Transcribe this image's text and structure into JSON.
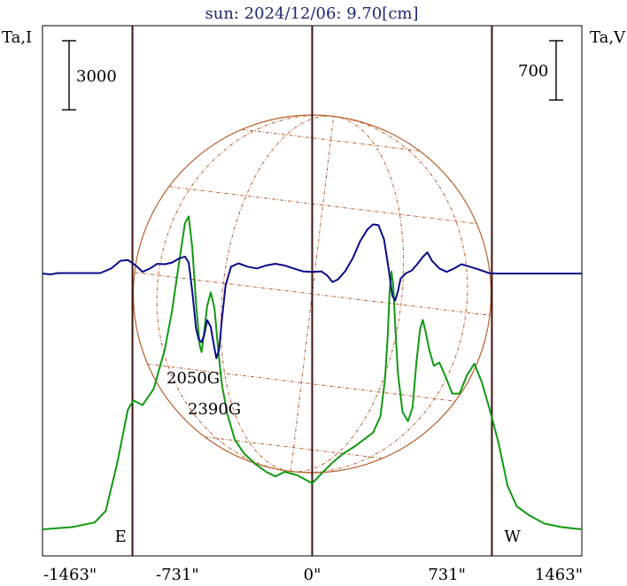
{
  "chart_data": {
    "type": "line",
    "title": "sun: 2024/12/06: 9.70[cm]",
    "ylabel_left": "Ta,I",
    "ylabel_right": "Ta,V",
    "scalebar_left": "3000",
    "scalebar_right": "700",
    "x_ticks": [
      {
        "value": -1463,
        "label": "-1463\""
      },
      {
        "value": -731,
        "label": "-731\""
      },
      {
        "value": 0,
        "label": "0\""
      },
      {
        "value": 731,
        "label": "731\""
      },
      {
        "value": 1463,
        "label": "1463\""
      }
    ],
    "xlim": [
      -1463,
      1463
    ],
    "limb_markers": [
      {
        "value": -975,
        "label": "E"
      },
      {
        "value": 0,
        "label": ""
      },
      {
        "value": 975,
        "label": "W"
      }
    ],
    "annotations": [
      "2050G",
      "2390G"
    ],
    "colors": {
      "title": "#1c2a6e",
      "intensity": "#119911",
      "polarization": "#0a0a8a",
      "disk": "#b8612e",
      "markers": "#3a1010",
      "frame": "#000000"
    },
    "series": [
      {
        "name": "Ta,I",
        "unit_per_bar": 3000,
        "points": [
          [
            -1463,
            0
          ],
          [
            -1300,
            100
          ],
          [
            -1180,
            300
          ],
          [
            -1120,
            800
          ],
          [
            -1060,
            2800
          ],
          [
            -1000,
            5200
          ],
          [
            -970,
            5600
          ],
          [
            -920,
            5400
          ],
          [
            -860,
            6100
          ],
          [
            -800,
            7800
          ],
          [
            -760,
            9500
          ],
          [
            -720,
            11700
          ],
          [
            -690,
            13300
          ],
          [
            -670,
            13600
          ],
          [
            -650,
            12200
          ],
          [
            -630,
            9800
          ],
          [
            -610,
            8000
          ],
          [
            -600,
            7700
          ],
          [
            -590,
            8300
          ],
          [
            -570,
            9700
          ],
          [
            -550,
            10300
          ],
          [
            -530,
            9600
          ],
          [
            -510,
            7800
          ],
          [
            -490,
            6300
          ],
          [
            -460,
            5000
          ],
          [
            -420,
            3900
          ],
          [
            -370,
            3300
          ],
          [
            -310,
            2850
          ],
          [
            -250,
            2500
          ],
          [
            -200,
            2300
          ],
          [
            -150,
            2500
          ],
          [
            -80,
            2350
          ],
          [
            0,
            2000
          ],
          [
            60,
            2500
          ],
          [
            110,
            2900
          ],
          [
            170,
            3300
          ],
          [
            230,
            3600
          ],
          [
            280,
            3900
          ],
          [
            330,
            4200
          ],
          [
            370,
            4900
          ],
          [
            395,
            6500
          ],
          [
            410,
            8400
          ],
          [
            420,
            10300
          ],
          [
            430,
            11200
          ],
          [
            440,
            10600
          ],
          [
            450,
            8900
          ],
          [
            465,
            6800
          ],
          [
            490,
            5100
          ],
          [
            520,
            4700
          ],
          [
            545,
            5300
          ],
          [
            565,
            7200
          ],
          [
            585,
            8700
          ],
          [
            600,
            9100
          ],
          [
            615,
            8600
          ],
          [
            635,
            7800
          ],
          [
            660,
            7100
          ],
          [
            690,
            7250
          ],
          [
            720,
            6700
          ],
          [
            760,
            5900
          ],
          [
            800,
            5900
          ],
          [
            840,
            6700
          ],
          [
            880,
            7200
          ],
          [
            920,
            6400
          ],
          [
            960,
            5300
          ],
          [
            1010,
            3800
          ],
          [
            1060,
            1900
          ],
          [
            1110,
            1000
          ],
          [
            1180,
            600
          ],
          [
            1260,
            250
          ],
          [
            1350,
            100
          ],
          [
            1463,
            0
          ]
        ]
      },
      {
        "name": "Ta,V",
        "unit_per_bar": 700,
        "points": [
          [
            -1463,
            0
          ],
          [
            -1420,
            -10
          ],
          [
            -1380,
            5
          ],
          [
            -1300,
            5
          ],
          [
            -1150,
            5
          ],
          [
            -1090,
            60
          ],
          [
            -1040,
            150
          ],
          [
            -1000,
            160
          ],
          [
            -960,
            100
          ],
          [
            -920,
            20
          ],
          [
            -880,
            60
          ],
          [
            -840,
            115
          ],
          [
            -800,
            110
          ],
          [
            -760,
            130
          ],
          [
            -720,
            180
          ],
          [
            -690,
            200
          ],
          [
            -670,
            130
          ],
          [
            -650,
            -220
          ],
          [
            -630,
            -650
          ],
          [
            -615,
            -780
          ],
          [
            -600,
            -810
          ],
          [
            -585,
            -720
          ],
          [
            -570,
            -550
          ],
          [
            -550,
            -630
          ],
          [
            -535,
            -820
          ],
          [
            -520,
            -1000
          ],
          [
            -505,
            -900
          ],
          [
            -490,
            -550
          ],
          [
            -470,
            -140
          ],
          [
            -440,
            80
          ],
          [
            -400,
            120
          ],
          [
            -350,
            80
          ],
          [
            -300,
            60
          ],
          [
            -250,
            95
          ],
          [
            -200,
            115
          ],
          [
            -150,
            95
          ],
          [
            -100,
            60
          ],
          [
            -50,
            25
          ],
          [
            0,
            20
          ],
          [
            50,
            25
          ],
          [
            80,
            -20
          ],
          [
            110,
            -100
          ],
          [
            140,
            -70
          ],
          [
            180,
            30
          ],
          [
            220,
            180
          ],
          [
            260,
            380
          ],
          [
            300,
            520
          ],
          [
            330,
            580
          ],
          [
            360,
            570
          ],
          [
            390,
            400
          ],
          [
            415,
            50
          ],
          [
            435,
            -260
          ],
          [
            450,
            -320
          ],
          [
            465,
            -210
          ],
          [
            480,
            -60
          ],
          [
            510,
            5
          ],
          [
            540,
            35
          ],
          [
            570,
            110
          ],
          [
            600,
            195
          ],
          [
            625,
            250
          ],
          [
            650,
            150
          ],
          [
            690,
            60
          ],
          [
            730,
            20
          ],
          [
            770,
            60
          ],
          [
            810,
            110
          ],
          [
            850,
            85
          ],
          [
            900,
            50
          ],
          [
            960,
            5
          ],
          [
            1000,
            0
          ],
          [
            1100,
            0
          ],
          [
            1200,
            0
          ],
          [
            1463,
            0
          ]
        ]
      }
    ]
  }
}
